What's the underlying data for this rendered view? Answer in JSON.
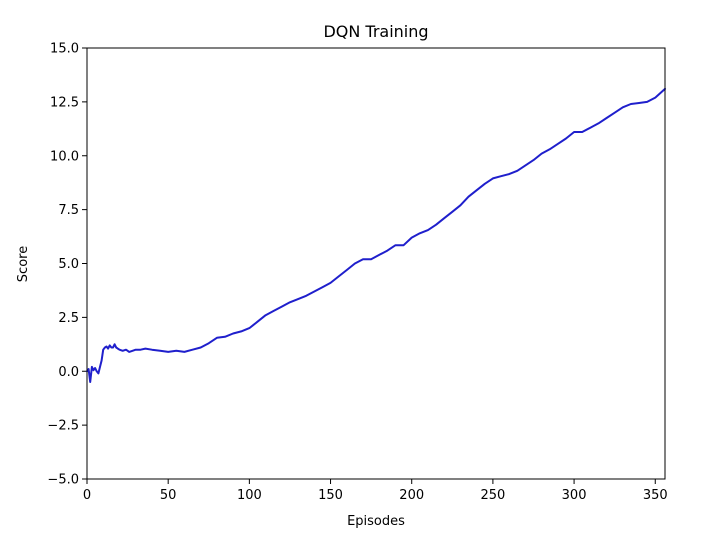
{
  "chart_data": {
    "type": "line",
    "title": "DQN Training",
    "xlabel": "Episodes",
    "ylabel": "Score",
    "xlim": [
      0,
      356
    ],
    "ylim": [
      -5.0,
      15.0
    ],
    "xticks": [
      0,
      50,
      100,
      150,
      200,
      250,
      300,
      350
    ],
    "xtick_labels": [
      "0",
      "50",
      "100",
      "150",
      "200",
      "250",
      "300",
      "350"
    ],
    "yticks": [
      -5.0,
      -2.5,
      0.0,
      2.5,
      5.0,
      7.5,
      10.0,
      12.5,
      15.0
    ],
    "ytick_labels": [
      "−5.0",
      "−2.5",
      "0.0",
      "2.5",
      "5.0",
      "7.5",
      "10.0",
      "12.5",
      "15.0"
    ],
    "grid": false,
    "series": [
      {
        "color": "#1f1fcc",
        "x": [
          0,
          1,
          2,
          3,
          4,
          5,
          6,
          7,
          8,
          9,
          10,
          11,
          12,
          13,
          14,
          15,
          16,
          17,
          18,
          19,
          20,
          22,
          24,
          26,
          28,
          30,
          33,
          36,
          40,
          45,
          50,
          55,
          60,
          65,
          70,
          75,
          80,
          85,
          90,
          95,
          100,
          105,
          110,
          115,
          120,
          125,
          130,
          135,
          140,
          145,
          150,
          155,
          160,
          165,
          170,
          175,
          180,
          185,
          190,
          195,
          200,
          205,
          210,
          215,
          220,
          225,
          230,
          235,
          240,
          245,
          250,
          255,
          260,
          265,
          270,
          275,
          280,
          285,
          290,
          295,
          300,
          305,
          310,
          315,
          320,
          325,
          330,
          335,
          340,
          345,
          350,
          356
        ],
        "y": [
          0.0,
          0.1,
          -0.5,
          0.2,
          0.05,
          0.15,
          0.0,
          -0.1,
          0.2,
          0.5,
          1.0,
          1.1,
          1.15,
          1.05,
          1.2,
          1.1,
          1.1,
          1.25,
          1.1,
          1.05,
          1.0,
          0.95,
          1.0,
          0.9,
          0.95,
          1.0,
          1.0,
          1.05,
          1.0,
          0.95,
          0.9,
          0.95,
          0.9,
          1.0,
          1.1,
          1.3,
          1.55,
          1.6,
          1.75,
          1.85,
          2.0,
          2.3,
          2.6,
          2.8,
          3.0,
          3.2,
          3.35,
          3.5,
          3.7,
          3.9,
          4.1,
          4.4,
          4.7,
          5.0,
          5.2,
          5.2,
          5.4,
          5.6,
          5.85,
          5.85,
          6.2,
          6.4,
          6.55,
          6.8,
          7.1,
          7.4,
          7.7,
          8.1,
          8.4,
          8.7,
          8.95,
          9.05,
          9.15,
          9.3,
          9.55,
          9.8,
          10.1,
          10.3,
          10.55,
          10.8,
          11.1,
          11.1,
          11.3,
          11.5,
          11.75,
          12.0,
          12.25,
          12.4,
          12.45,
          12.5,
          12.7,
          13.1
        ]
      }
    ]
  }
}
